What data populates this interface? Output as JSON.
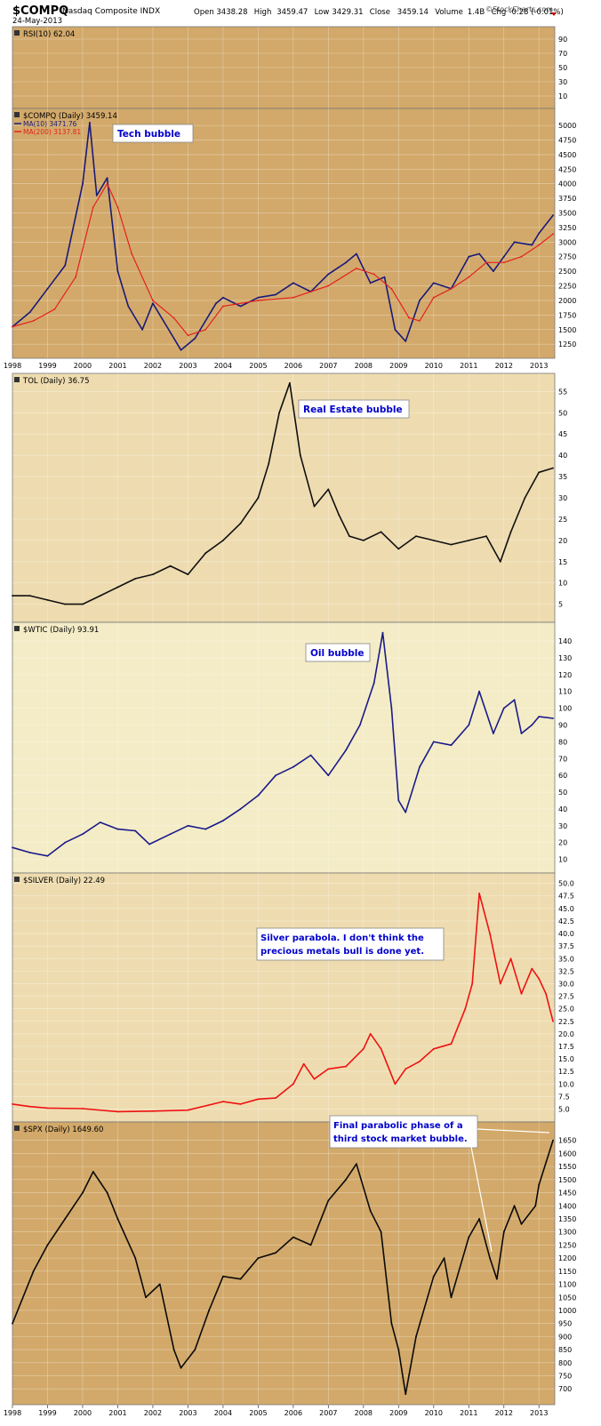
{
  "header": {
    "symbol": "$COMPQ",
    "name": "Nasdaq Composite INDX",
    "date": "24-May-2013",
    "quote": "Open 3438.28  High 3459.47  Low 3429.31  Close 3459.14  Volume 1.4B  Chg -0.28 (-0.01%)",
    "quote_parts": [
      {
        "label": "Open",
        "value": "3438.28"
      },
      {
        "label": "High",
        "value": "3459.47"
      },
      {
        "label": "Low",
        "value": "3429.31"
      },
      {
        "label": "Close",
        "value": "3459.14"
      },
      {
        "label": "Volume",
        "value": "1.4B"
      },
      {
        "label": "Chg",
        "value": "-0.28 (-0.01%)"
      }
    ],
    "watermark": "©StockCharts.com"
  },
  "x_axis": {
    "years": [
      "1998",
      "1999",
      "2000",
      "2001",
      "2002",
      "2003",
      "2004",
      "2005",
      "2006",
      "2007",
      "2008",
      "2009",
      "2010",
      "2011",
      "2012",
      "2013"
    ]
  },
  "chart_data": [
    {
      "type": "line",
      "title": "RSI(10) 62.04",
      "ticks": [
        "90",
        "70",
        "50",
        "30",
        "10"
      ],
      "ylim": [
        0,
        100
      ],
      "grid": true,
      "background": "#d2a96a",
      "series": [
        {
          "name": "RSI(10)",
          "color": "#1a1a7a",
          "values": []
        }
      ]
    },
    {
      "type": "line",
      "title": "$COMPQ (Daily) 3459.14",
      "legend": [
        "MA(10) 3471.76",
        "MA(200) 3137.81"
      ],
      "ticks": [
        "5000",
        "4750",
        "4500",
        "4250",
        "4000",
        "3750",
        "3500",
        "3250",
        "3000",
        "2750",
        "2500",
        "2250",
        "2000",
        "1750",
        "1500",
        "1250"
      ],
      "ylim": [
        1100,
        5200
      ],
      "annotations": [
        "Tech bubble"
      ],
      "background": "#d2a96a",
      "series": [
        {
          "name": "$COMPQ",
          "color": "#1a1a7a",
          "x": [
            1998.0,
            1998.5,
            1999.0,
            1999.5,
            2000.0,
            2000.2,
            2000.4,
            2000.7,
            2001.0,
            2001.3,
            2001.7,
            2002.0,
            2002.5,
            2002.8,
            2003.2,
            2003.8,
            2004.0,
            2004.5,
            2005.0,
            2005.5,
            2006.0,
            2006.5,
            2007.0,
            2007.5,
            2007.8,
            2008.2,
            2008.6,
            2008.9,
            2009.2,
            2009.6,
            2010.0,
            2010.5,
            2011.0,
            2011.3,
            2011.7,
            2012.0,
            2012.3,
            2012.8,
            2013.0,
            2013.4
          ],
          "values": [
            1550,
            1800,
            2200,
            2600,
            4000,
            5050,
            3800,
            4100,
            2500,
            1900,
            1500,
            1950,
            1450,
            1150,
            1350,
            1950,
            2050,
            1900,
            2050,
            2100,
            2300,
            2150,
            2450,
            2650,
            2800,
            2300,
            2400,
            1500,
            1300,
            2000,
            2300,
            2200,
            2750,
            2800,
            2500,
            2750,
            3000,
            2950,
            3150,
            3460
          ]
        },
        {
          "name": "MA(200)",
          "color": "#e52020",
          "x": [
            1998.0,
            1998.6,
            1999.2,
            1999.8,
            2000.3,
            2000.7,
            2001.0,
            2001.4,
            2002.0,
            2002.6,
            2003.0,
            2003.5,
            2004.0,
            2005.0,
            2006.0,
            2007.0,
            2007.8,
            2008.3,
            2008.8,
            2009.3,
            2009.6,
            2010.0,
            2010.5,
            2011.0,
            2011.5,
            2012.0,
            2012.5,
            2013.0,
            2013.4
          ],
          "values": [
            1550,
            1650,
            1850,
            2400,
            3600,
            4000,
            3600,
            2800,
            2000,
            1700,
            1400,
            1500,
            1900,
            2000,
            2050,
            2250,
            2550,
            2450,
            2200,
            1700,
            1650,
            2050,
            2200,
            2400,
            2650,
            2650,
            2750,
            2950,
            3140
          ]
        }
      ]
    },
    {
      "type": "line",
      "title": "TOL (Daily) 36.75",
      "ticks": [
        "55",
        "50",
        "45",
        "40",
        "35",
        "30",
        "25",
        "20",
        "15",
        "10",
        "5"
      ],
      "ylim": [
        2,
        58
      ],
      "annotations": [
        "Real Estate bubble"
      ],
      "background": "#eedcb0",
      "series": [
        {
          "name": "TOL",
          "color": "#101010",
          "x": [
            1998.0,
            1998.5,
            1999.0,
            1999.5,
            2000.0,
            2000.5,
            2001.0,
            2001.5,
            2002.0,
            2002.5,
            2003.0,
            2003.5,
            2004.0,
            2004.5,
            2005.0,
            2005.3,
            2005.6,
            2005.9,
            2006.2,
            2006.6,
            2007.0,
            2007.3,
            2007.6,
            2008.0,
            2008.5,
            2009.0,
            2009.5,
            2010.0,
            2010.5,
            2011.0,
            2011.5,
            2011.9,
            2012.2,
            2012.6,
            2013.0,
            2013.4
          ],
          "values": [
            7,
            7,
            6,
            5,
            5,
            7,
            9,
            11,
            12,
            14,
            12,
            17,
            20,
            24,
            30,
            38,
            50,
            57,
            40,
            28,
            32,
            26,
            21,
            20,
            22,
            18,
            21,
            20,
            19,
            20,
            21,
            15,
            22,
            30,
            36,
            37
          ]
        }
      ]
    },
    {
      "type": "line",
      "title": "$WTIC (Daily) 93.91",
      "ticks": [
        "140",
        "130",
        "120",
        "110",
        "100",
        "90",
        "80",
        "70",
        "60",
        "50",
        "40",
        "30",
        "20",
        "10"
      ],
      "ylim": [
        5,
        148
      ],
      "annotations": [
        "Oil bubble"
      ],
      "background": "#f4ecc6",
      "series": [
        {
          "name": "$WTIC",
          "color": "#1a1a8a",
          "x": [
            1998.0,
            1998.5,
            1999.0,
            1999.5,
            2000.0,
            2000.5,
            2001.0,
            2001.5,
            2001.9,
            2002.5,
            2003.0,
            2003.5,
            2004.0,
            2004.5,
            2005.0,
            2005.5,
            2006.0,
            2006.5,
            2007.0,
            2007.5,
            2007.9,
            2008.3,
            2008.55,
            2008.8,
            2009.0,
            2009.2,
            2009.6,
            2010.0,
            2010.5,
            2011.0,
            2011.3,
            2011.7,
            2012.0,
            2012.3,
            2012.5,
            2012.8,
            2013.0,
            2013.4
          ],
          "values": [
            17,
            14,
            12,
            20,
            25,
            32,
            28,
            27,
            19,
            25,
            30,
            28,
            33,
            40,
            48,
            60,
            65,
            72,
            60,
            75,
            90,
            115,
            145,
            100,
            45,
            38,
            65,
            80,
            78,
            90,
            110,
            85,
            100,
            105,
            85,
            90,
            95,
            94
          ]
        }
      ]
    },
    {
      "type": "line",
      "title": "$SILVER (Daily) 22.49",
      "ticks": [
        "50.0",
        "47.5",
        "45.0",
        "42.5",
        "40.0",
        "37.5",
        "35.0",
        "32.5",
        "30.0",
        "27.5",
        "25.0",
        "22.5",
        "20.0",
        "17.5",
        "15.0",
        "12.5",
        "10.0",
        "7.5",
        "5.0"
      ],
      "ylim": [
        3.5,
        51
      ],
      "annotations": [
        "Silver parabola. I don't think the precious metals bull is done yet."
      ],
      "background": "#eedcb0",
      "series": [
        {
          "name": "$SILVER",
          "color": "#ee1111",
          "x": [
            1998.0,
            1998.5,
            1999.0,
            2000.0,
            2001.0,
            2002.0,
            2003.0,
            2004.0,
            2004.5,
            2005.0,
            2005.5,
            2006.0,
            2006.3,
            2006.6,
            2007.0,
            2007.5,
            2008.0,
            2008.2,
            2008.5,
            2008.9,
            2009.2,
            2009.6,
            2010.0,
            2010.5,
            2010.9,
            2011.1,
            2011.3,
            2011.6,
            2011.9,
            2012.2,
            2012.5,
            2012.8,
            2013.0,
            2013.2,
            2013.4
          ],
          "values": [
            6,
            5.5,
            5.2,
            5.1,
            4.5,
            4.6,
            4.8,
            6.5,
            6,
            7,
            7.2,
            10,
            14,
            11,
            13,
            13.5,
            17,
            20,
            17,
            10,
            13,
            14.5,
            17,
            18,
            25,
            30,
            48,
            40,
            30,
            35,
            28,
            33,
            31,
            28,
            22.5
          ]
        }
      ]
    },
    {
      "type": "line",
      "title": "$SPX (Daily) 1649.60",
      "ticks": [
        "1650",
        "1600",
        "1550",
        "1500",
        "1450",
        "1400",
        "1350",
        "1300",
        "1250",
        "1200",
        "1150",
        "1100",
        "1050",
        "1000",
        "950",
        "900",
        "850",
        "800",
        "750",
        "700"
      ],
      "ylim": [
        660,
        1700
      ],
      "annotations": [
        "Final parabolic phase of a third stock market bubble."
      ],
      "background": "#d2a96a",
      "series": [
        {
          "name": "$SPX",
          "color": "#0a0a0a",
          "x": [
            1998.0,
            1998.6,
            1999.0,
            1999.5,
            2000.0,
            2000.3,
            2000.7,
            2001.0,
            2001.5,
            2001.8,
            2002.2,
            2002.6,
            2002.8,
            2003.2,
            2003.6,
            2004.0,
            2004.5,
            2005.0,
            2005.5,
            2006.0,
            2006.5,
            2007.0,
            2007.5,
            2007.8,
            2008.2,
            2008.5,
            2008.8,
            2009.0,
            2009.2,
            2009.5,
            2010.0,
            2010.3,
            2010.5,
            2011.0,
            2011.3,
            2011.6,
            2011.8,
            2012.0,
            2012.3,
            2012.5,
            2012.9,
            2013.0,
            2013.4
          ],
          "values": [
            950,
            1150,
            1250,
            1350,
            1450,
            1530,
            1450,
            1350,
            1200,
            1050,
            1100,
            850,
            780,
            850,
            1000,
            1130,
            1120,
            1200,
            1220,
            1280,
            1250,
            1420,
            1500,
            1560,
            1380,
            1300,
            950,
            850,
            680,
            900,
            1130,
            1200,
            1050,
            1280,
            1350,
            1200,
            1120,
            1300,
            1400,
            1330,
            1400,
            1480,
            1650
          ]
        }
      ]
    }
  ]
}
